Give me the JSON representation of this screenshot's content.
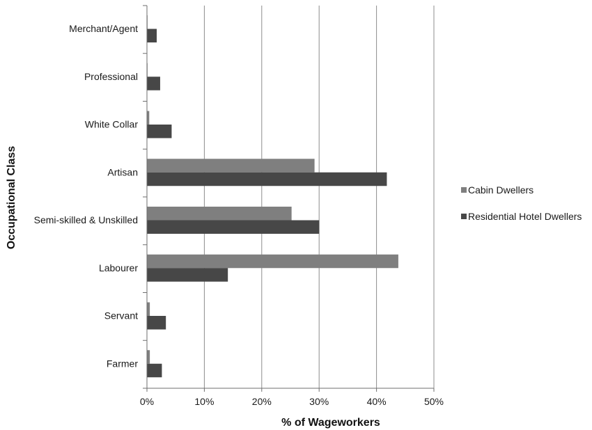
{
  "chart_data": {
    "type": "bar",
    "orientation": "horizontal",
    "categories": [
      "Merchant/Agent",
      "Professional",
      "White Collar",
      "Artisan",
      "Semi-skilled & Unskilled",
      "Labourer",
      "Servant",
      "Farmer"
    ],
    "series": [
      {
        "name": "Cabin Dwellers",
        "color": "#7f7f7f",
        "values": [
          0.1,
          0.1,
          0.4,
          29.2,
          25.2,
          43.8,
          0.5,
          0.5
        ]
      },
      {
        "name": "Residential Hotel Dwellers",
        "color": "#474747",
        "values": [
          1.7,
          2.3,
          4.3,
          41.8,
          30.0,
          14.1,
          3.3,
          2.6
        ]
      }
    ],
    "xlabel": "% of Wageworkers",
    "ylabel": "Occupational Class",
    "xlim": [
      0,
      50
    ],
    "xticks": [
      0,
      10,
      20,
      30,
      40,
      50
    ],
    "xtick_labels": [
      "0%",
      "10%",
      "20%",
      "30%",
      "40%",
      "50%"
    ],
    "grid": true,
    "legend_position": "right"
  }
}
